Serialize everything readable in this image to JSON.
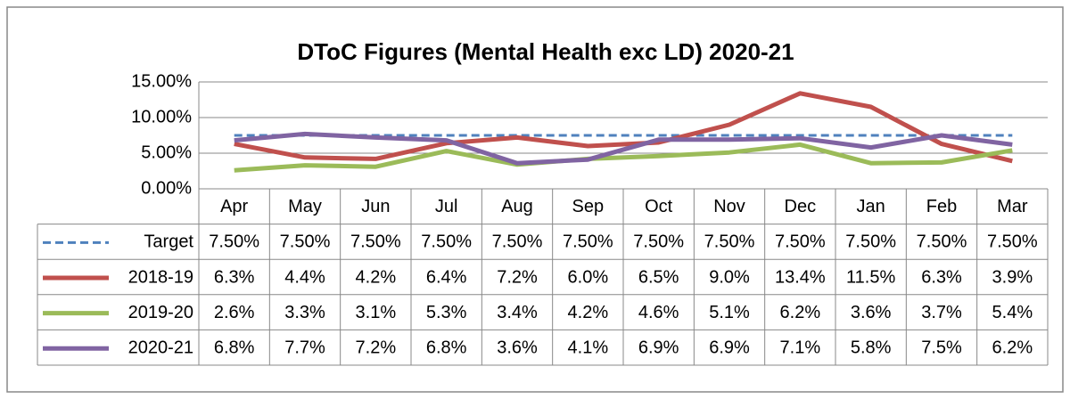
{
  "chart_data": {
    "type": "line",
    "title": "DToC Figures (Mental Health exc LD) 2020-21",
    "categories": [
      "Apr",
      "May",
      "Jun",
      "Jul",
      "Aug",
      "Sep",
      "Oct",
      "Nov",
      "Dec",
      "Jan",
      "Feb",
      "Mar"
    ],
    "ylim": [
      0,
      15
    ],
    "yticks": [
      {
        "value": 0,
        "label": "0.00%"
      },
      {
        "value": 5,
        "label": "5.00%"
      },
      {
        "value": 10,
        "label": "10.00%"
      },
      {
        "value": 15,
        "label": "15.00%"
      }
    ],
    "grid": true,
    "series": [
      {
        "name": "Target",
        "color": "#4f81bd",
        "line_style": "dashed",
        "values": [
          7.5,
          7.5,
          7.5,
          7.5,
          7.5,
          7.5,
          7.5,
          7.5,
          7.5,
          7.5,
          7.5,
          7.5
        ],
        "value_labels": [
          "7.50%",
          "7.50%",
          "7.50%",
          "7.50%",
          "7.50%",
          "7.50%",
          "7.50%",
          "7.50%",
          "7.50%",
          "7.50%",
          "7.50%",
          "7.50%"
        ]
      },
      {
        "name": "2018-19",
        "color": "#c0504d",
        "line_style": "solid",
        "values": [
          6.3,
          4.4,
          4.2,
          6.4,
          7.2,
          6.0,
          6.5,
          9.0,
          13.4,
          11.5,
          6.3,
          3.9
        ],
        "value_labels": [
          "6.3%",
          "4.4%",
          "4.2%",
          "6.4%",
          "7.2%",
          "6.0%",
          "6.5%",
          "9.0%",
          "13.4%",
          "11.5%",
          "6.3%",
          "3.9%"
        ]
      },
      {
        "name": "2019-20",
        "color": "#9bbb59",
        "line_style": "solid",
        "values": [
          2.6,
          3.3,
          3.1,
          5.3,
          3.4,
          4.2,
          4.6,
          5.1,
          6.2,
          3.6,
          3.7,
          5.4
        ],
        "value_labels": [
          "2.6%",
          "3.3%",
          "3.1%",
          "5.3%",
          "3.4%",
          "4.2%",
          "4.6%",
          "5.1%",
          "6.2%",
          "3.6%",
          "3.7%",
          "5.4%"
        ]
      },
      {
        "name": "2020-21",
        "color": "#8064a2",
        "line_style": "solid",
        "values": [
          6.8,
          7.7,
          7.2,
          6.8,
          3.6,
          4.1,
          6.9,
          6.9,
          7.1,
          5.8,
          7.5,
          6.2
        ],
        "value_labels": [
          "6.8%",
          "7.7%",
          "7.2%",
          "6.8%",
          "3.6%",
          "4.1%",
          "6.9%",
          "6.9%",
          "7.1%",
          "5.8%",
          "7.5%",
          "6.2%"
        ]
      }
    ]
  }
}
